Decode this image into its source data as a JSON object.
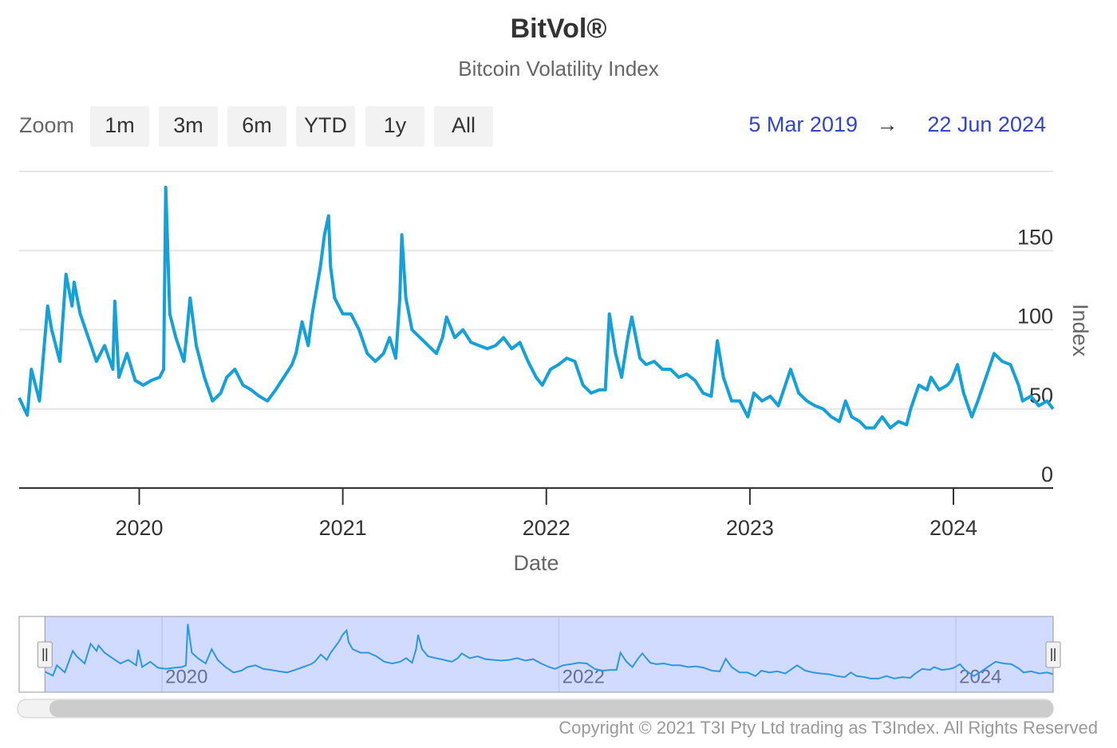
{
  "chart_data": {
    "type": "line",
    "title": "BitVol®",
    "subtitle": "Bitcoin Volatility Index",
    "x_label": "Date",
    "y_label": "Index",
    "zoom_label": "Zoom",
    "zoom_buttons": [
      "1m",
      "3m",
      "6m",
      "YTD",
      "1y",
      "All"
    ],
    "range_from": "5 Mar 2019",
    "range_arrow": "→",
    "range_to": "22 Jun 2024",
    "copyright": "Copyright © 2021 T3I Pty Ltd trading as T3Index. All Rights Reserved",
    "color": "#14a0d8",
    "grid": true,
    "xlim": [
      2019.41,
      2024.49
    ],
    "xticks": [
      2020,
      2021,
      2022,
      2023,
      2024
    ],
    "ylim": [
      0,
      200
    ],
    "yticks": [
      0,
      50,
      100,
      150
    ],
    "x": [
      2019.41,
      2019.45,
      2019.47,
      2019.51,
      2019.55,
      2019.57,
      2019.61,
      2019.64,
      2019.67,
      2019.68,
      2019.71,
      2019.75,
      2019.79,
      2019.83,
      2019.87,
      2019.88,
      2019.9,
      2019.94,
      2019.98,
      2020.02,
      2020.06,
      2020.1,
      2020.12,
      2020.13,
      2020.15,
      2020.18,
      2020.22,
      2020.25,
      2020.28,
      2020.32,
      2020.36,
      2020.4,
      2020.43,
      2020.47,
      2020.51,
      2020.55,
      2020.59,
      2020.63,
      2020.67,
      2020.71,
      2020.75,
      2020.77,
      2020.8,
      2020.83,
      2020.85,
      2020.89,
      2020.91,
      2020.93,
      2020.94,
      2020.96,
      2021.0,
      2021.04,
      2021.08,
      2021.12,
      2021.16,
      2021.2,
      2021.23,
      2021.26,
      2021.28,
      2021.29,
      2021.31,
      2021.34,
      2021.38,
      2021.42,
      2021.46,
      2021.49,
      2021.51,
      2021.55,
      2021.59,
      2021.63,
      2021.67,
      2021.71,
      2021.75,
      2021.79,
      2021.83,
      2021.87,
      2021.91,
      2021.95,
      2021.98,
      2022.02,
      2022.06,
      2022.1,
      2022.14,
      2022.18,
      2022.22,
      2022.26,
      2022.29,
      2022.31,
      2022.34,
      2022.37,
      2022.4,
      2022.42,
      2022.46,
      2022.49,
      2022.53,
      2022.57,
      2022.61,
      2022.65,
      2022.69,
      2022.73,
      2022.77,
      2022.81,
      2022.84,
      2022.87,
      2022.91,
      2022.95,
      2022.99,
      2023.02,
      2023.06,
      2023.1,
      2023.14,
      2023.2,
      2023.24,
      2023.28,
      2023.32,
      2023.36,
      2023.4,
      2023.44,
      2023.47,
      2023.5,
      2023.54,
      2023.57,
      2023.61,
      2023.65,
      2023.69,
      2023.73,
      2023.77,
      2023.79,
      2023.83,
      2023.87,
      2023.89,
      2023.93,
      2023.97,
      2023.99,
      2024.02,
      2024.05,
      2024.09,
      2024.12,
      2024.16,
      2024.2,
      2024.24,
      2024.28,
      2024.32,
      2024.34,
      2024.38,
      2024.42,
      2024.46,
      2024.49
    ],
    "values": [
      57,
      46,
      75,
      55,
      115,
      100,
      80,
      135,
      115,
      130,
      110,
      95,
      80,
      90,
      75,
      118,
      70,
      85,
      68,
      65,
      68,
      70,
      75,
      190,
      110,
      95,
      80,
      120,
      90,
      70,
      55,
      60,
      70,
      75,
      65,
      62,
      58,
      55,
      62,
      70,
      78,
      85,
      105,
      90,
      110,
      140,
      160,
      172,
      140,
      120,
      110,
      110,
      100,
      85,
      80,
      85,
      95,
      82,
      120,
      160,
      120,
      100,
      95,
      90,
      85,
      95,
      108,
      95,
      100,
      92,
      90,
      88,
      90,
      95,
      88,
      92,
      80,
      70,
      65,
      75,
      78,
      82,
      80,
      65,
      60,
      62,
      62,
      110,
      85,
      70,
      95,
      108,
      82,
      78,
      80,
      75,
      75,
      70,
      72,
      68,
      60,
      58,
      93,
      70,
      55,
      55,
      45,
      60,
      55,
      58,
      52,
      75,
      60,
      55,
      52,
      50,
      45,
      42,
      55,
      45,
      42,
      38,
      38,
      45,
      38,
      42,
      40,
      50,
      65,
      62,
      70,
      62,
      65,
      68,
      78,
      60,
      45,
      55,
      70,
      85,
      80,
      78,
      65,
      55,
      58,
      52,
      55,
      50
    ],
    "navigator": {
      "xlim": [
        2019.28,
        2024.49
      ],
      "xticks": [
        2020,
        2022,
        2024
      ]
    }
  }
}
